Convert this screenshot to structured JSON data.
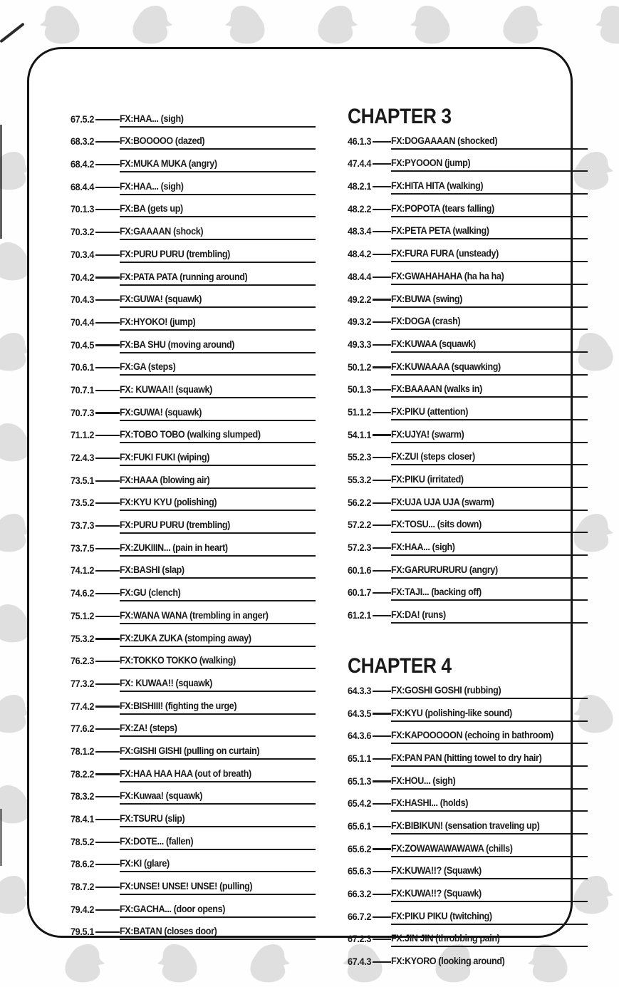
{
  "colors": {
    "ink": "#1a1a1a",
    "penguin": "#d8d8d8",
    "paper": "#ffffff"
  },
  "columns": [
    {
      "sections": [
        {
          "entries": [
            {
              "num": "67.5.2",
              "fx": "FX:HAA... (sigh)"
            },
            {
              "num": "68.3.2",
              "fx": "FX:BOOOOO (dazed)"
            },
            {
              "num": "68.4.2",
              "fx": "FX:MUKA MUKA (angry)"
            },
            {
              "num": "68.4.4",
              "fx": "FX:HAA... (sigh)"
            },
            {
              "num": "70.1.3",
              "fx": "FX:BA (gets up)"
            },
            {
              "num": "70.3.2",
              "fx": "FX:GAAAAN (shock)"
            },
            {
              "num": "70.3.4",
              "fx": "FX:PURU PURU (trembling)"
            },
            {
              "num": "70.4.2",
              "fx": "FX:PATA PATA (running around)"
            },
            {
              "num": "70.4.3",
              "fx": "FX:GUWA! (squawk)"
            },
            {
              "num": "70.4.4",
              "fx": "FX:HYOKO! (jump)"
            },
            {
              "num": "70.4.5",
              "fx": "FX:BA SHU (moving around)"
            },
            {
              "num": "70.6.1",
              "fx": "FX:GA (steps)"
            },
            {
              "num": "70.7.1",
              "fx": "FX: KUWAA!! (squawk)"
            },
            {
              "num": "70.7.3",
              "fx": "FX:GUWA! (squawk)"
            },
            {
              "num": "71.1.2",
              "fx": "FX:TOBO TOBO (walking slumped)"
            },
            {
              "num": "72.4.3",
              "fx": "FX:FUKI FUKI (wiping)"
            },
            {
              "num": "73.5.1",
              "fx": "FX:HAAA (blowing air)"
            },
            {
              "num": "73.5.2",
              "fx": "FX:KYU KYU (polishing)"
            },
            {
              "num": "73.7.3",
              "fx": "FX:PURU PURU (trembling)"
            },
            {
              "num": "73.7.5",
              "fx": "FX:ZUKIIIN... (pain in heart)"
            },
            {
              "num": "74.1.2",
              "fx": "FX:BASHI (slap)"
            },
            {
              "num": "74.6.2",
              "fx": "FX:GU (clench)"
            },
            {
              "num": "75.1.2",
              "fx": "FX:WANA WANA (trembling in anger)"
            },
            {
              "num": "75.3.2",
              "fx": "FX:ZUKA ZUKA (stomping away)"
            },
            {
              "num": "76.2.3",
              "fx": "FX:TOKKO TOKKO (walking)"
            },
            {
              "num": "77.3.2",
              "fx": "FX: KUWAA!! (squawk)"
            },
            {
              "num": "77.4.2",
              "fx": "FX:BISHIII! (fighting the urge)"
            },
            {
              "num": "77.6.2",
              "fx": "FX:ZA! (steps)"
            },
            {
              "num": "78.1.2",
              "fx": "FX:GISHI GISHI (pulling on curtain)"
            },
            {
              "num": "78.2.2",
              "fx": "FX:HAA HAA HAA (out of breath)"
            },
            {
              "num": "78.3.2",
              "fx": "FX:Kuwaa! (squawk)"
            },
            {
              "num": "78.4.1",
              "fx": "FX:TSURU (slip)"
            },
            {
              "num": "78.5.2",
              "fx": "FX:DOTE... (fallen)"
            },
            {
              "num": "78.6.2",
              "fx": "FX:KI (glare)"
            },
            {
              "num": "78.7.2",
              "fx": "FX:UNSE! UNSE! UNSE! (pulling)"
            },
            {
              "num": "79.4.2",
              "fx": "FX:GACHA... (door opens)"
            },
            {
              "num": "79.5.1",
              "fx": "FX:BATAN (closes door)"
            }
          ]
        }
      ]
    },
    {
      "sections": [
        {
          "heading": "CHAPTER 3",
          "entries": [
            {
              "num": "46.1.3",
              "fx": "FX:DOGAAAAN (shocked)"
            },
            {
              "num": "47.4.4",
              "fx": "FX:PYOOON (jump)"
            },
            {
              "num": "48.2.1",
              "fx": "FX:HITA HITA (walking)"
            },
            {
              "num": "48.2.2",
              "fx": "FX:POPOTA (tears falling)"
            },
            {
              "num": "48.3.4",
              "fx": "FX:PETA PETA (walking)"
            },
            {
              "num": "48.4.2",
              "fx": "FX:FURA FURA (unsteady)"
            },
            {
              "num": "48.4.4",
              "fx": "FX:GWAHAHAHA (ha ha ha)"
            },
            {
              "num": "49.2.2",
              "fx": "FX:BUWA (swing)"
            },
            {
              "num": "49.3.2",
              "fx": "FX:DOGA (crash)"
            },
            {
              "num": "49.3.3",
              "fx": "FX:KUWAA (squawk)"
            },
            {
              "num": "50.1.2",
              "fx": "FX:KUWAAAA (squawking)"
            },
            {
              "num": "50.1.3",
              "fx": "FX:BAAAAN (walks in)"
            },
            {
              "num": "51.1.2",
              "fx": "FX:PIKU (attention)"
            },
            {
              "num": "54.1.1",
              "fx": "FX:UJYA! (swarm)"
            },
            {
              "num": "55.2.3",
              "fx": "FX:ZUI (steps closer)"
            },
            {
              "num": "55.3.2",
              "fx": "FX:PIKU (irritated)"
            },
            {
              "num": "56.2.2",
              "fx": "FX:UJA UJA UJA (swarm)"
            },
            {
              "num": "57.2.2",
              "fx": "FX:TOSU... (sits down)"
            },
            {
              "num": "57.2.3",
              "fx": "FX:HAA... (sigh)"
            },
            {
              "num": "60.1.6",
              "fx": "FX:GARURURURU (angry)"
            },
            {
              "num": "60.1.7",
              "fx": "FX:TAJI... (backing off)"
            },
            {
              "num": "61.2.1",
              "fx": "FX:DA! (runs)"
            }
          ]
        },
        {
          "heading": "CHAPTER 4",
          "entries": [
            {
              "num": "64.3.3",
              "fx": "FX:GOSHI GOSHI (rubbing)"
            },
            {
              "num": "64.3.5",
              "fx": "FX:KYU (polishing-like sound)"
            },
            {
              "num": "64.3.6",
              "fx": "FX:KAPOOOOON (echoing in bathroom)"
            },
            {
              "num": "65.1.1",
              "fx": "FX:PAN PAN (hitting towel to dry hair)"
            },
            {
              "num": "65.1.3",
              "fx": "FX:HOU... (sigh)"
            },
            {
              "num": "65.4.2",
              "fx": "FX:HASHI... (holds)"
            },
            {
              "num": "65.6.1",
              "fx": "FX:BIBIKUN! (sensation traveling up)"
            },
            {
              "num": "65.6.2",
              "fx": "FX:ZOWAWAWAWAWA (chills)"
            },
            {
              "num": "65.6.3",
              "fx": "FX:KUWA!!? (Squawk)"
            },
            {
              "num": "66.3.2",
              "fx": "FX:KUWA!!? (Squawk)"
            },
            {
              "num": "66.7.2",
              "fx": "FX:PIKU PIKU (twitching)"
            },
            {
              "num": "67.2.3",
              "fx": "FX:JIN JIN (throbbing pain)"
            },
            {
              "num": "67.4.3",
              "fx": "FX:KYORO (looking around)",
              "underline": false
            }
          ]
        }
      ]
    }
  ]
}
